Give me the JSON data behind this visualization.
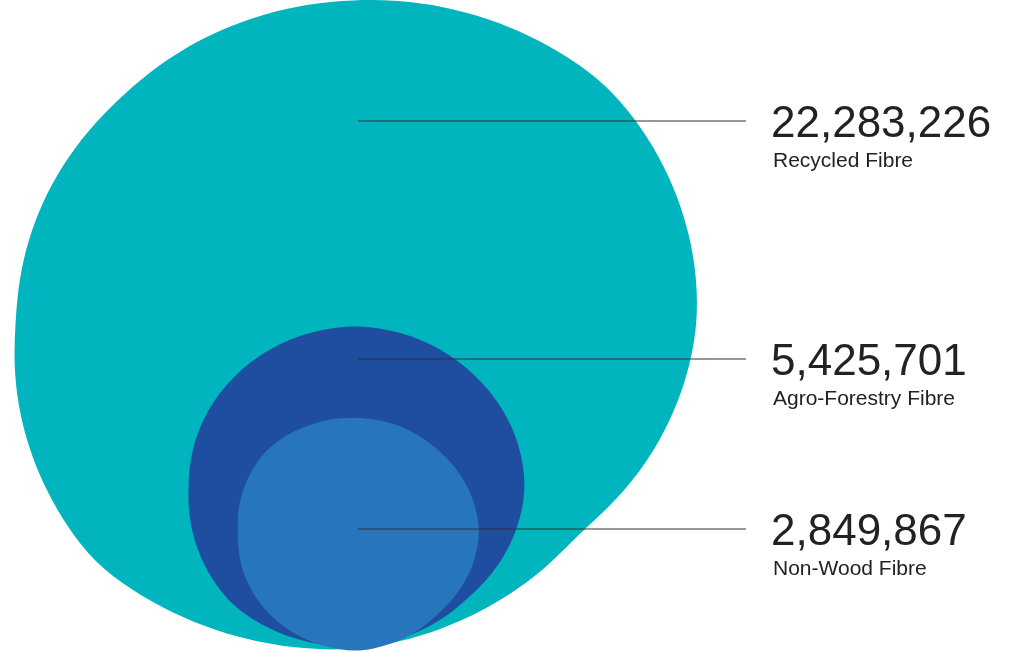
{
  "chart_data": {
    "type": "other",
    "categories": [
      "Recycled Fibre",
      "Agro-Forestry Fibre",
      "Non-Wood Fibre"
    ],
    "values": [
      22283226,
      5425701,
      2849867
    ],
    "value_labels": [
      "22,283,226",
      "5,425,701",
      "2,849,867"
    ],
    "colors": [
      "#00b5bd",
      "#1f4ea1",
      "#2776bb"
    ]
  }
}
